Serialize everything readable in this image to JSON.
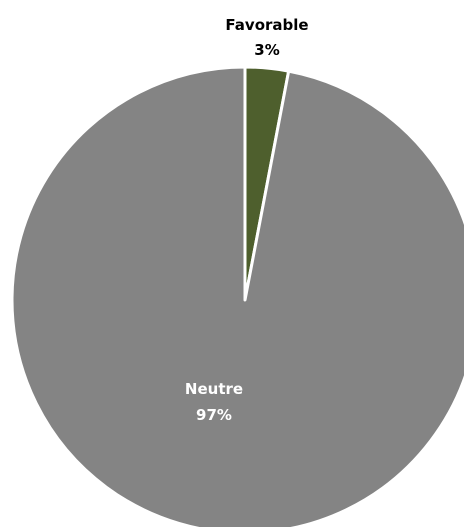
{
  "chart_data": {
    "type": "pie",
    "title": "",
    "slices": [
      {
        "label": "Favorable",
        "value": 3,
        "value_label": "3%",
        "color": "#4e5f2d"
      },
      {
        "label": "Neutre",
        "value": 97,
        "value_label": "97%",
        "color": "#848484"
      }
    ],
    "start_angle": "12 o'clock",
    "direction": "clockwise",
    "slice_border_color": "#ffffff",
    "label_color_outside": "#000000",
    "label_color_inside": "#ffffff",
    "legend": "none"
  }
}
